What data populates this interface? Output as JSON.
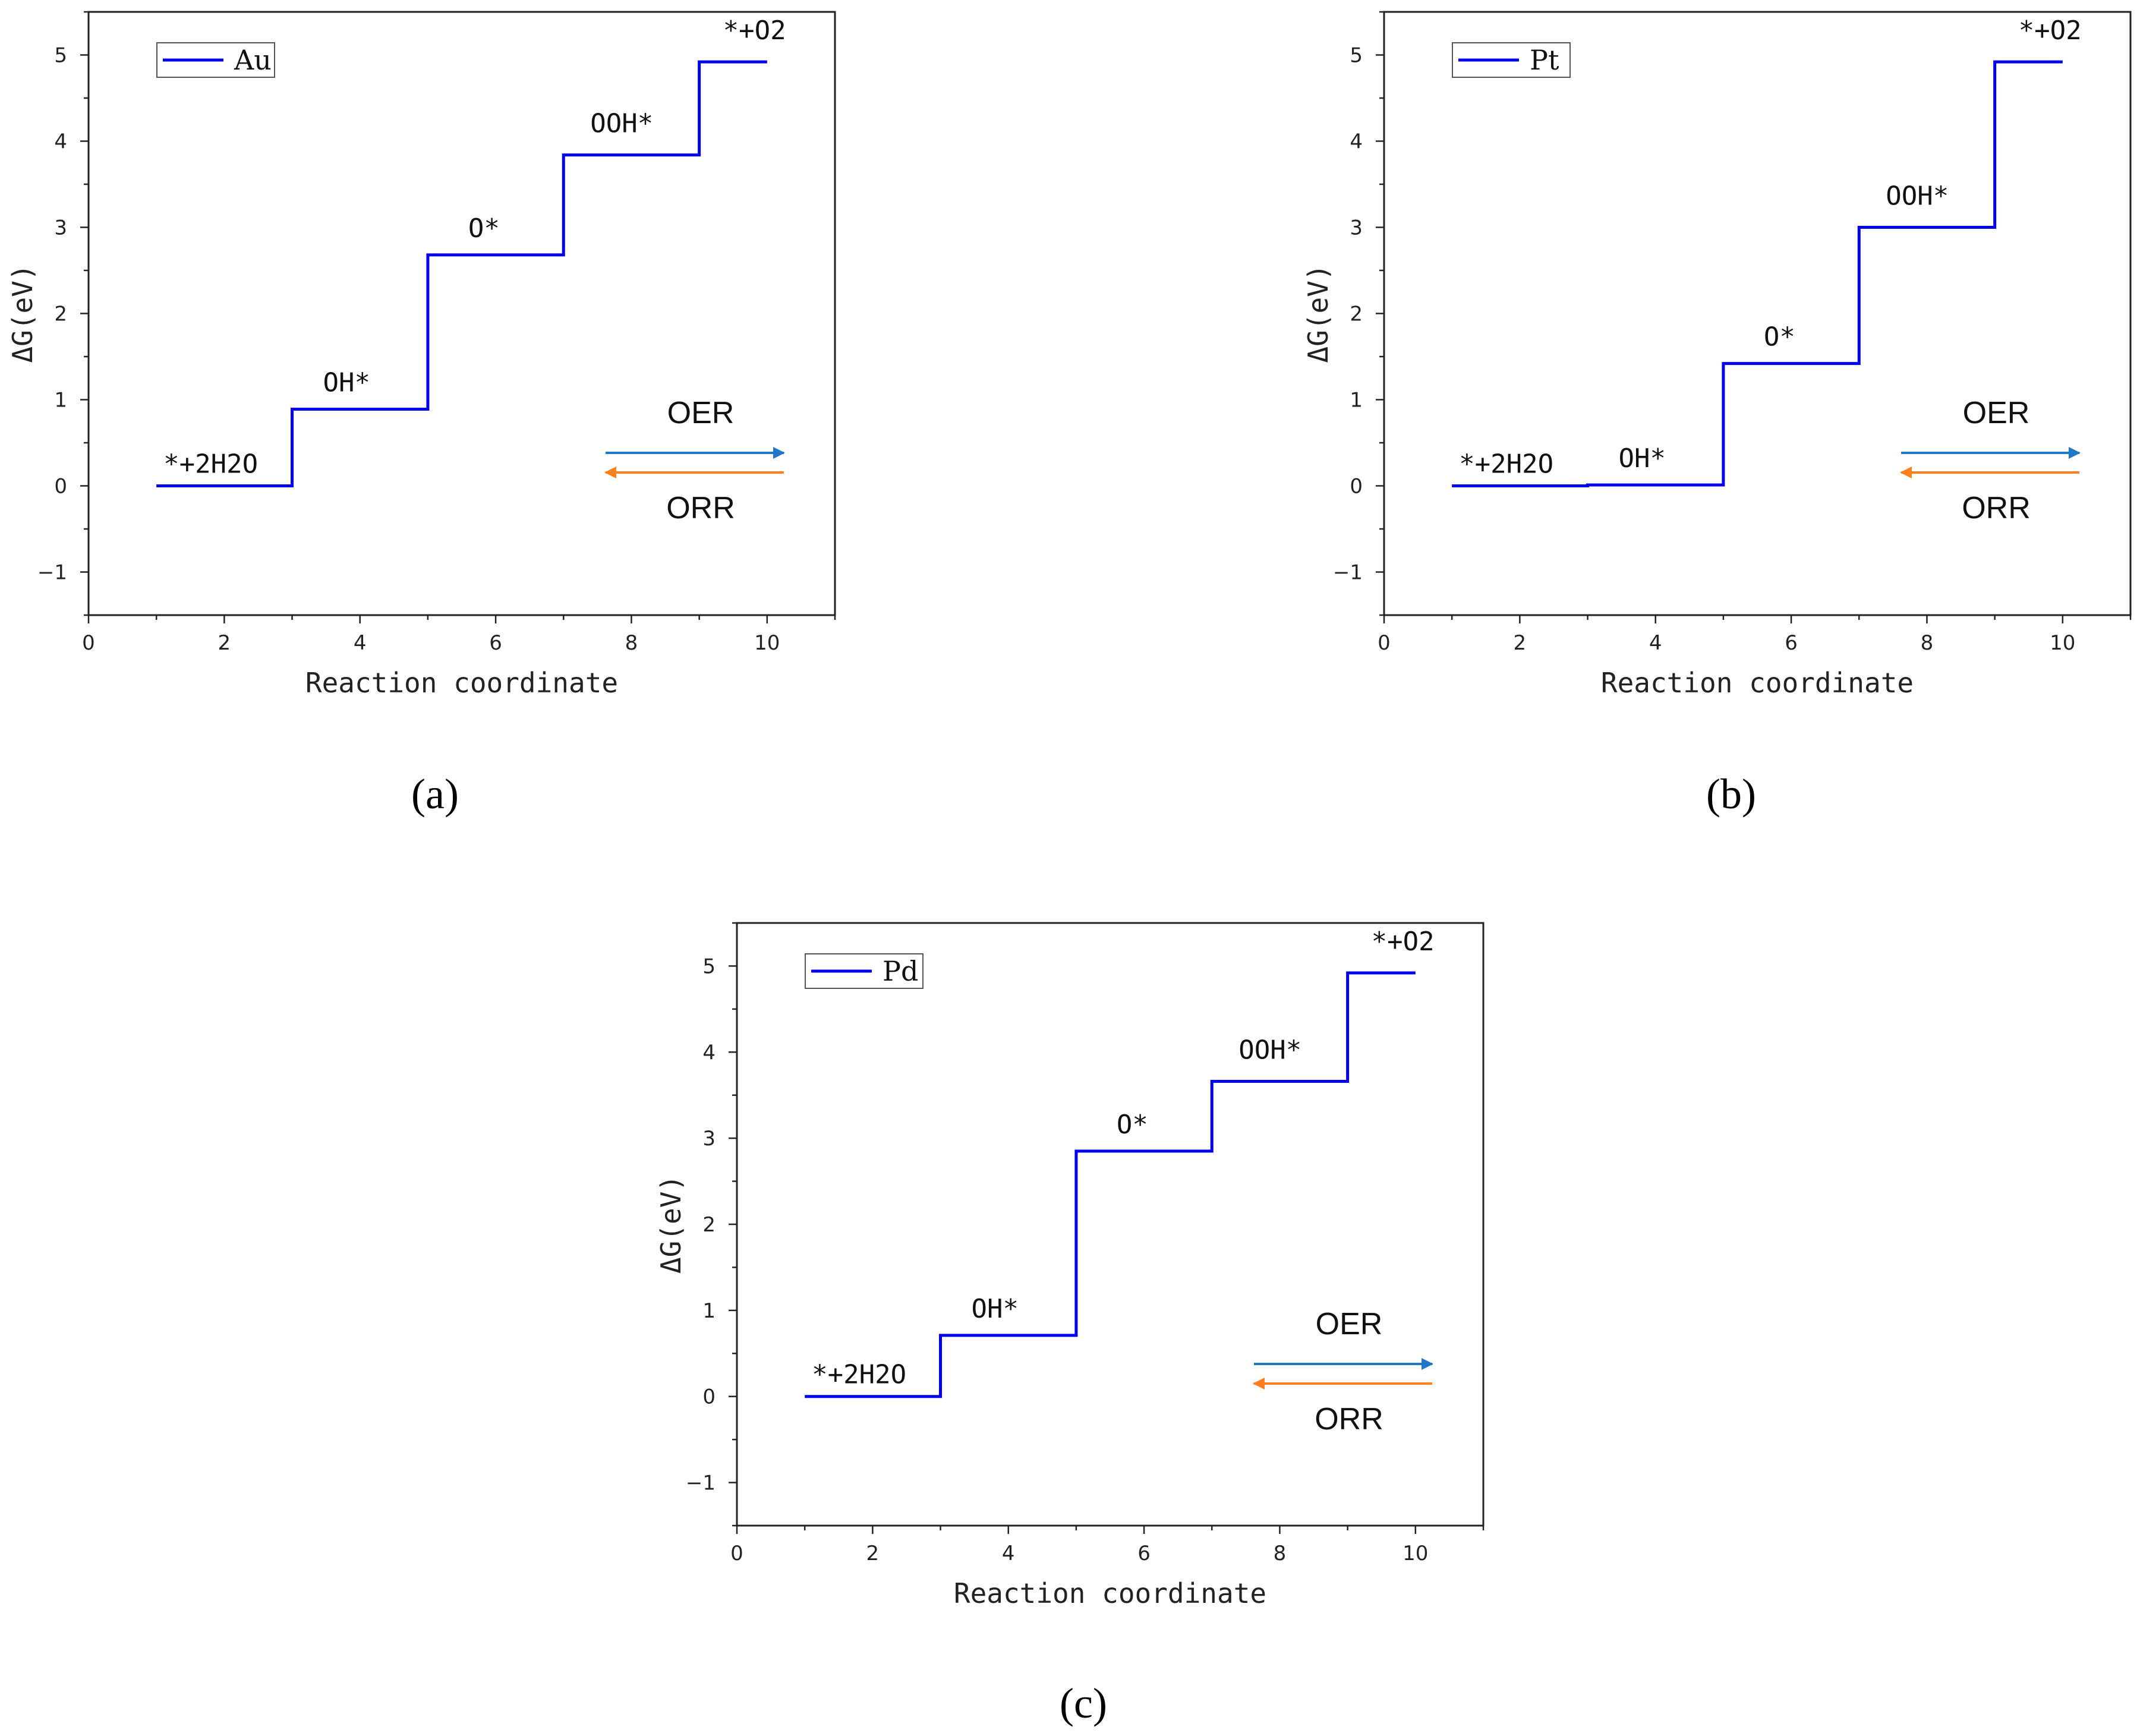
{
  "colors": {
    "profile_line": "#0000ee",
    "oer_arrow": "#1f77c8",
    "orr_arrow": "#ff7f1e",
    "axis": "#222222"
  },
  "chart_data": [
    {
      "panel": "a",
      "panel_label": "(a)",
      "type": "line",
      "step_profile": true,
      "legend": "Au",
      "xlabel": "Reaction coordinate",
      "ylabel": "ΔG(eV)",
      "xlim": [
        0,
        11
      ],
      "ylim": [
        -1.5,
        5.5
      ],
      "xticks": [
        0,
        2,
        4,
        6,
        8,
        10
      ],
      "yticks": [
        -1,
        0,
        1,
        2,
        3,
        4,
        5
      ],
      "states": [
        {
          "label": "*+2H2O",
          "x_start": 1,
          "x_end": 3,
          "energy": 0.0
        },
        {
          "label": "OH*",
          "x_start": 3,
          "x_end": 5,
          "energy": 0.89
        },
        {
          "label": "O*",
          "x_start": 5,
          "x_end": 7,
          "energy": 2.68
        },
        {
          "label": "OOH*",
          "x_start": 7,
          "x_end": 9,
          "energy": 3.84
        },
        {
          "label": "*+O2",
          "x_start": 9,
          "x_end": 10,
          "energy": 4.92
        }
      ],
      "arrows": {
        "oer": "OER",
        "orr": "ORR"
      }
    },
    {
      "panel": "b",
      "panel_label": "(b)",
      "type": "line",
      "step_profile": true,
      "legend": "Pt",
      "xlabel": "Reaction coordinate",
      "ylabel": "ΔG(eV)",
      "xlim": [
        0,
        11
      ],
      "ylim": [
        -1.5,
        5.5
      ],
      "xticks": [
        0,
        2,
        4,
        6,
        8,
        10
      ],
      "yticks": [
        -1,
        0,
        1,
        2,
        3,
        4,
        5
      ],
      "states": [
        {
          "label": "*+2H2O",
          "x_start": 1,
          "x_end": 3,
          "energy": 0.0
        },
        {
          "label": "OH*",
          "x_start": 3,
          "x_end": 5,
          "energy": 0.01
        },
        {
          "label": "O*",
          "x_start": 5,
          "x_end": 7,
          "energy": 1.42
        },
        {
          "label": "OOH*",
          "x_start": 7,
          "x_end": 9,
          "energy": 3.0
        },
        {
          "label": "*+O2",
          "x_start": 9,
          "x_end": 10,
          "energy": 4.92
        }
      ],
      "arrows": {
        "oer": "OER",
        "orr": "ORR"
      }
    },
    {
      "panel": "c",
      "panel_label": "(c)",
      "type": "line",
      "step_profile": true,
      "legend": "Pd",
      "xlabel": "Reaction coordinate",
      "ylabel": "ΔG(eV)",
      "xlim": [
        0,
        11
      ],
      "ylim": [
        -1.5,
        5.5
      ],
      "xticks": [
        0,
        2,
        4,
        6,
        8,
        10
      ],
      "yticks": [
        -1,
        0,
        1,
        2,
        3,
        4,
        5
      ],
      "states": [
        {
          "label": "*+2H2O",
          "x_start": 1,
          "x_end": 3,
          "energy": 0.0
        },
        {
          "label": "OH*",
          "x_start": 3,
          "x_end": 5,
          "energy": 0.71
        },
        {
          "label": "O*",
          "x_start": 5,
          "x_end": 7,
          "energy": 2.85
        },
        {
          "label": "OOH*",
          "x_start": 7,
          "x_end": 9,
          "energy": 3.66
        },
        {
          "label": "*+O2",
          "x_start": 9,
          "x_end": 10,
          "energy": 4.92
        }
      ],
      "arrows": {
        "oer": "OER",
        "orr": "ORR"
      }
    }
  ]
}
